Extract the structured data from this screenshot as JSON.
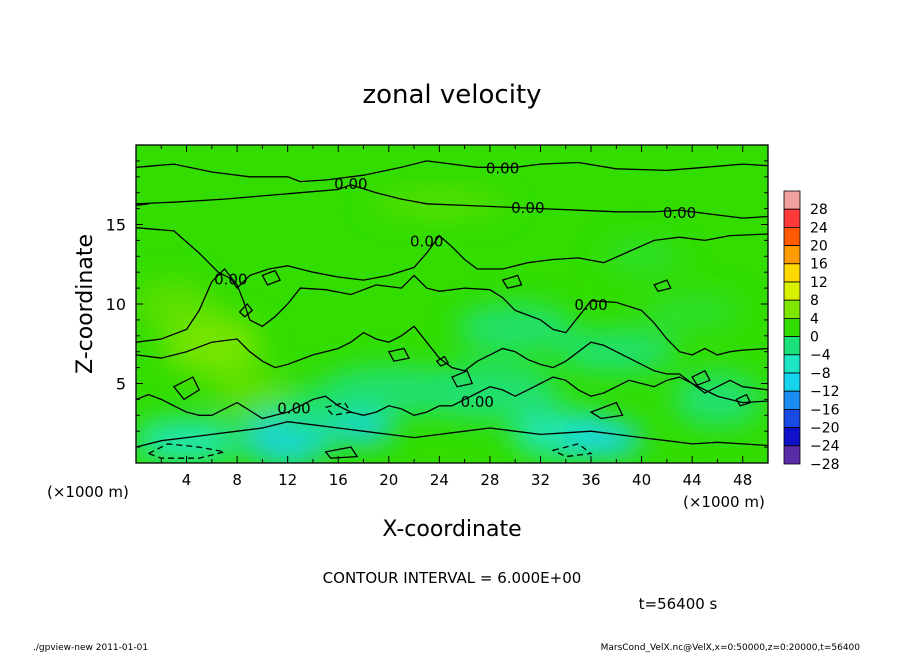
{
  "chart_data": {
    "type": "heatmap",
    "title": "zonal velocity",
    "xlabel": "X-coordinate",
    "ylabel": "Z-coordinate",
    "x_unit": "(×1000 m)",
    "y_unit": "(×1000 m)",
    "xlim": [
      0,
      50
    ],
    "ylim": [
      0,
      20
    ],
    "x_ticks": [
      4,
      8,
      12,
      16,
      20,
      24,
      28,
      32,
      36,
      40,
      44,
      48
    ],
    "y_ticks": [
      5,
      10,
      15
    ],
    "contour_interval_text": "CONTOUR INTERVAL = 6.000E+00",
    "time_text": "t=56400 s",
    "colorbar": {
      "levels": [
        28,
        24,
        20,
        16,
        12,
        8,
        4,
        0,
        -4,
        -8,
        -12,
        -16,
        -20,
        -24,
        -28
      ],
      "label_text": [
        "28",
        "24",
        "20",
        "16",
        "12",
        "8",
        "4",
        "0",
        "−4",
        "−8",
        "−12",
        "−16",
        "−20",
        "−24",
        "−28"
      ],
      "colors": [
        "#f2a0a0",
        "#ff3a3a",
        "#ff5a00",
        "#ff9a00",
        "#ffd800",
        "#d8f000",
        "#7ee600",
        "#33dd00",
        "#1ce07a",
        "#1ce6c4",
        "#16d4ee",
        "#1a8cf2",
        "#1a4ae6",
        "#1010c8",
        "#5a2ca8"
      ]
    },
    "contour_labels": [
      {
        "text": "0.00",
        "x": 17,
        "z": 17.6
      },
      {
        "text": "0.00",
        "x": 29,
        "z": 18.6
      },
      {
        "text": "0.00",
        "x": 31,
        "z": 16.1
      },
      {
        "text": "0.00",
        "x": 43,
        "z": 15.8
      },
      {
        "text": "0.00",
        "x": 23,
        "z": 14.0
      },
      {
        "text": "0.00",
        "x": 7.5,
        "z": 11.6
      },
      {
        "text": "0.00",
        "x": 36,
        "z": 10.0
      },
      {
        "text": "0.00",
        "x": 12.5,
        "z": 3.5
      },
      {
        "text": "0.00",
        "x": 27,
        "z": 3.9
      }
    ]
  },
  "footer": {
    "left": "./gpview-new   2011-01-01",
    "right": "MarsCond_VelX.nc@VelX,x=0:50000,z=0:20000,t=56400"
  }
}
